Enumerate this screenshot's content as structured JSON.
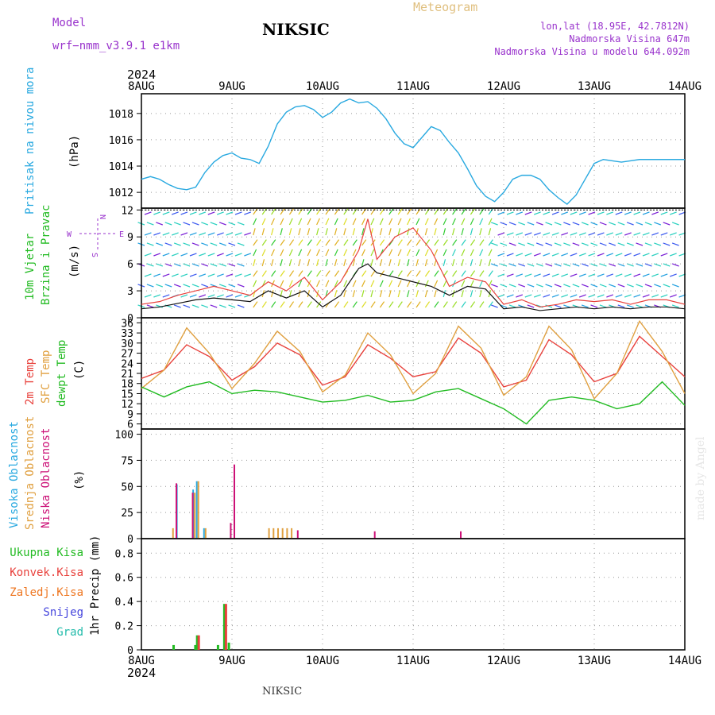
{
  "header": {
    "model_label": "Model",
    "model_name": "wrf−nmm_v3.9.1  e1km",
    "station": "NIKSIC",
    "product": "Meteogram",
    "coords": "lon,lat (18.95E, 42.7812N)",
    "elevation": "Nadmorska Visina 647m",
    "model_elevation": "Nadmorska Visina u modelu 644.092m",
    "year": "2024",
    "footer_station": "NIKSIC",
    "credit": "made by Angel"
  },
  "colors": {
    "pressure": "#29a9e0",
    "wind_label": "#22bb22",
    "temp2m": "#e8413c",
    "sfc": "#e0a040",
    "dewpt": "#22bb22",
    "high_cloud": "#29a9e0",
    "mid_cloud": "#e0a040",
    "low_cloud": "#cc1177",
    "purple": "#9933cc"
  },
  "chart_data": [
    {
      "id": "pressure",
      "type": "line",
      "ylabel_main": "Pritisak na nivou mora",
      "unit": "(hPa)",
      "x_ticks": [
        "8AUG",
        "9AUG",
        "10AUG",
        "11AUG",
        "12AUG",
        "13AUG",
        "14AUG"
      ],
      "ylim": [
        1010.8,
        1019.5
      ],
      "yticks": [
        1012,
        1014,
        1016,
        1018
      ],
      "series": [
        {
          "x": [
            0,
            0.1,
            0.2,
            0.3,
            0.4,
            0.5,
            0.6,
            0.7,
            0.8,
            0.9,
            1.0,
            1.1,
            1.2,
            1.3,
            1.4,
            1.5,
            1.6,
            1.7,
            1.8,
            1.9,
            2.0,
            2.1,
            2.2,
            2.3,
            2.4,
            2.5,
            2.6,
            2.7,
            2.8,
            2.9,
            3.0,
            3.1,
            3.2,
            3.3,
            3.4,
            3.5,
            3.6,
            3.7,
            3.8,
            3.9,
            4.0,
            4.1,
            4.2,
            4.3,
            4.4,
            4.5,
            4.6,
            4.7,
            4.8,
            4.9,
            5.0,
            5.1,
            5.2,
            5.3,
            5.4,
            5.5,
            5.6,
            5.7,
            5.8,
            5.9,
            6.0
          ],
          "y": [
            1013.0,
            1013.2,
            1013.0,
            1012.6,
            1012.3,
            1012.2,
            1012.4,
            1013.5,
            1014.3,
            1014.8,
            1015.0,
            1014.6,
            1014.5,
            1014.2,
            1015.5,
            1017.2,
            1018.1,
            1018.5,
            1018.6,
            1018.3,
            1017.7,
            1018.1,
            1018.8,
            1019.1,
            1018.8,
            1018.9,
            1018.4,
            1017.6,
            1016.5,
            1015.7,
            1015.4,
            1016.2,
            1017.0,
            1016.7,
            1015.8,
            1015.0,
            1013.8,
            1012.5,
            1011.7,
            1011.3,
            1012.0,
            1013.0,
            1013.3,
            1013.3,
            1013.0,
            1012.2,
            1011.6,
            1011.1,
            1011.8,
            1013.0,
            1014.2,
            1014.5,
            1014.4,
            1014.3,
            1014.4,
            1014.5,
            1014.5,
            1014.5,
            1014.5,
            1014.5,
            1014.5
          ]
        }
      ]
    },
    {
      "id": "wind",
      "type": "line",
      "ylabel_main": "10m Vjetar",
      "ylabel_sub": "Brzina i Pravac",
      "unit": "(m/s)",
      "compass": [
        "N",
        "S",
        "W",
        "E"
      ],
      "ylim": [
        0,
        12.2
      ],
      "yticks": [
        0,
        3,
        6,
        9,
        12
      ],
      "series": [
        {
          "name": "gust",
          "x": [
            0,
            0.2,
            0.4,
            0.6,
            0.8,
            1.0,
            1.2,
            1.4,
            1.6,
            1.8,
            2.0,
            2.2,
            2.4,
            2.5,
            2.6,
            2.8,
            3.0,
            3.2,
            3.4,
            3.6,
            3.8,
            4.0,
            4.2,
            4.4,
            4.6,
            4.8,
            5.0,
            5.2,
            5.4,
            5.6,
            5.8,
            6.0
          ],
          "y": [
            1.5,
            1.8,
            2.5,
            3.0,
            3.5,
            3.0,
            2.5,
            4.0,
            3.0,
            4.5,
            2.0,
            4.0,
            7.5,
            11.0,
            6.5,
            9.0,
            10.0,
            7.5,
            3.5,
            4.5,
            4.0,
            1.5,
            2.0,
            1.2,
            1.5,
            2.0,
            1.8,
            2.0,
            1.5,
            2.0,
            2.0,
            1.5
          ]
        },
        {
          "name": "mean",
          "x": [
            0,
            0.2,
            0.4,
            0.6,
            0.8,
            1.0,
            1.2,
            1.4,
            1.6,
            1.8,
            2.0,
            2.2,
            2.4,
            2.5,
            2.6,
            2.8,
            3.0,
            3.2,
            3.4,
            3.6,
            3.8,
            4.0,
            4.2,
            4.4,
            4.6,
            4.8,
            5.0,
            5.2,
            5.4,
            5.6,
            5.8,
            6.0
          ],
          "y": [
            1.0,
            1.2,
            1.6,
            2.0,
            2.2,
            2.0,
            1.8,
            3.0,
            2.2,
            3.0,
            1.2,
            2.5,
            5.5,
            6.0,
            5.0,
            4.5,
            4.0,
            3.5,
            2.5,
            3.5,
            3.2,
            1.0,
            1.2,
            0.8,
            1.0,
            1.2,
            1.0,
            1.2,
            1.0,
            1.2,
            1.2,
            1.0
          ]
        }
      ]
    },
    {
      "id": "temperature",
      "type": "line",
      "ylabels": [
        "2m Temp",
        "SFC Temp",
        "dewpt Temp"
      ],
      "unit": "(C)",
      "ylim": [
        4.5,
        37.5
      ],
      "yticks": [
        6,
        9,
        12,
        15,
        18,
        21,
        24,
        27,
        30,
        33,
        36
      ],
      "series": [
        {
          "name": "2m Temp",
          "x": [
            0,
            0.25,
            0.5,
            0.75,
            1.0,
            1.25,
            1.5,
            1.75,
            2.0,
            2.25,
            2.5,
            2.75,
            3.0,
            3.25,
            3.5,
            3.75,
            4.0,
            4.25,
            4.5,
            4.75,
            5.0,
            5.25,
            5.5,
            5.75,
            6.0
          ],
          "y": [
            19.5,
            22.0,
            29.5,
            26.0,
            19.0,
            23.0,
            30.0,
            26.5,
            17.5,
            20.0,
            29.5,
            25.5,
            20.0,
            21.5,
            31.5,
            27.0,
            17.0,
            19.0,
            31.0,
            26.5,
            18.5,
            21.0,
            32.0,
            26.0,
            20.0
          ]
        },
        {
          "name": "SFC Temp",
          "x": [
            0,
            0.25,
            0.5,
            0.75,
            1.0,
            1.25,
            1.5,
            1.75,
            2.0,
            2.25,
            2.5,
            2.75,
            3.0,
            3.25,
            3.5,
            3.75,
            4.0,
            4.25,
            4.5,
            4.75,
            5.0,
            5.25,
            5.5,
            5.75,
            6.0
          ],
          "y": [
            16.5,
            22.0,
            34.5,
            27.0,
            16.5,
            24.0,
            33.5,
            27.5,
            15.5,
            20.5,
            33.0,
            26.5,
            15.0,
            21.0,
            35.0,
            28.5,
            14.5,
            20.0,
            35.0,
            28.0,
            13.5,
            21.0,
            36.5,
            27.5,
            15.0
          ]
        },
        {
          "name": "dewpt Temp",
          "x": [
            0,
            0.25,
            0.5,
            0.75,
            1.0,
            1.25,
            1.5,
            1.75,
            2.0,
            2.25,
            2.5,
            2.75,
            3.0,
            3.25,
            3.5,
            3.75,
            4.0,
            4.25,
            4.5,
            4.75,
            5.0,
            5.25,
            5.5,
            5.75,
            6.0
          ],
          "y": [
            17.0,
            14.0,
            17.0,
            18.5,
            15.0,
            16.0,
            15.5,
            14.0,
            12.5,
            13.0,
            14.5,
            12.5,
            13.0,
            15.5,
            16.5,
            13.5,
            10.5,
            6.0,
            13.0,
            14.0,
            13.0,
            10.5,
            12.0,
            18.5,
            11.5
          ]
        }
      ]
    },
    {
      "id": "clouds",
      "type": "bar",
      "ylabels": [
        "Visoka Oblacnost",
        "Srednja Oblacnost",
        "Niska Oblacnost"
      ],
      "unit": "(%)",
      "ylim": [
        0,
        105
      ],
      "yticks": [
        0,
        25,
        50,
        75,
        100
      ],
      "series": [
        {
          "name": "Visoka Oblacnost",
          "x": [
            0.4,
            0.58,
            0.62,
            0.7
          ],
          "values": [
            52,
            47,
            55,
            10
          ]
        },
        {
          "name": "Srednja Oblacnost",
          "x": [
            0.34,
            0.58,
            0.62,
            0.7,
            1.4,
            1.45,
            1.5,
            1.55,
            1.6,
            1.65
          ],
          "values": [
            10,
            44,
            55,
            10,
            10,
            10,
            10,
            10,
            10,
            10
          ]
        },
        {
          "name": "Niska Oblacnost",
          "x": [
            0.36,
            0.54,
            0.96,
            1.0,
            1.7,
            2.55,
            3.5
          ],
          "values": [
            53,
            44,
            15,
            71,
            8,
            7,
            7
          ]
        }
      ]
    },
    {
      "id": "precip",
      "type": "bar",
      "ylabels": [
        "Ukupna Kisa",
        "Konvek.Kisa",
        "Zaledj.Kisa",
        "Snijeg",
        "Grad"
      ],
      "unit": "1hr Precip (mm)",
      "ylim": [
        0,
        0.92
      ],
      "yticks": [
        0,
        0.2,
        0.4,
        0.6,
        0.8
      ],
      "series": [
        {
          "name": "Ukupna Kisa",
          "x": [
            0.36,
            0.6,
            0.62,
            0.85,
            0.92,
            0.97
          ],
          "values": [
            0.04,
            0.04,
            0.12,
            0.04,
            0.38,
            0.06
          ]
        },
        {
          "name": "Konvek.Kisa",
          "x": [
            0.62,
            0.92
          ],
          "values": [
            0.12,
            0.38
          ]
        }
      ]
    }
  ]
}
